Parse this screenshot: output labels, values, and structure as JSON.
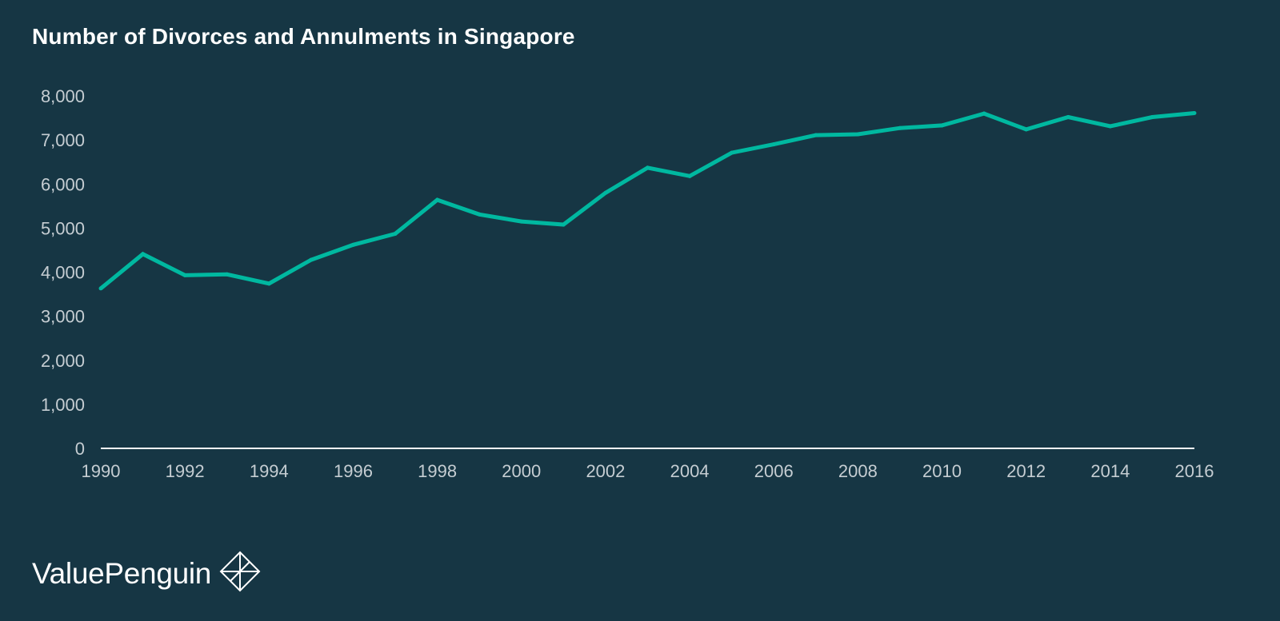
{
  "page": {
    "title": "Number of Divorces and Annulments in Singapore",
    "brand": "ValuePenguin",
    "brand_icon": "valuepenguin-logo-icon"
  },
  "colors": {
    "background": "#163644",
    "line": "#00b8a0",
    "axis": "#ffffff",
    "tick_text": "#c5cdd2",
    "title_text": "#ffffff"
  },
  "chart_data": {
    "type": "line",
    "title": "Number of Divorces and Annulments in Singapore",
    "xlabel": "",
    "ylabel": "",
    "x": [
      1990,
      1991,
      1992,
      1993,
      1994,
      1995,
      1996,
      1997,
      1998,
      1999,
      2000,
      2001,
      2002,
      2003,
      2004,
      2005,
      2006,
      2007,
      2008,
      2009,
      2010,
      2011,
      2012,
      2013,
      2014,
      2015,
      2016
    ],
    "series": [
      {
        "values": [
          3630,
          4410,
          3930,
          3950,
          3740,
          4280,
          4620,
          4870,
          5640,
          5310,
          5150,
          5080,
          5800,
          6370,
          6180,
          6710,
          6900,
          7110,
          7130,
          7270,
          7330,
          7600,
          7240,
          7520,
          7310,
          7520,
          7610
        ]
      }
    ],
    "x_ticks": [
      "1990",
      "1992",
      "1994",
      "1996",
      "1998",
      "2000",
      "2002",
      "2004",
      "2006",
      "2008",
      "2010",
      "2012",
      "2014",
      "2016"
    ],
    "y_ticks": [
      "0",
      "1,000",
      "2,000",
      "3,000",
      "4,000",
      "5,000",
      "6,000",
      "7,000",
      "8,000"
    ],
    "xlim": [
      1990,
      2016
    ],
    "ylim": [
      0,
      8000
    ],
    "grid": false,
    "legend": "none"
  }
}
